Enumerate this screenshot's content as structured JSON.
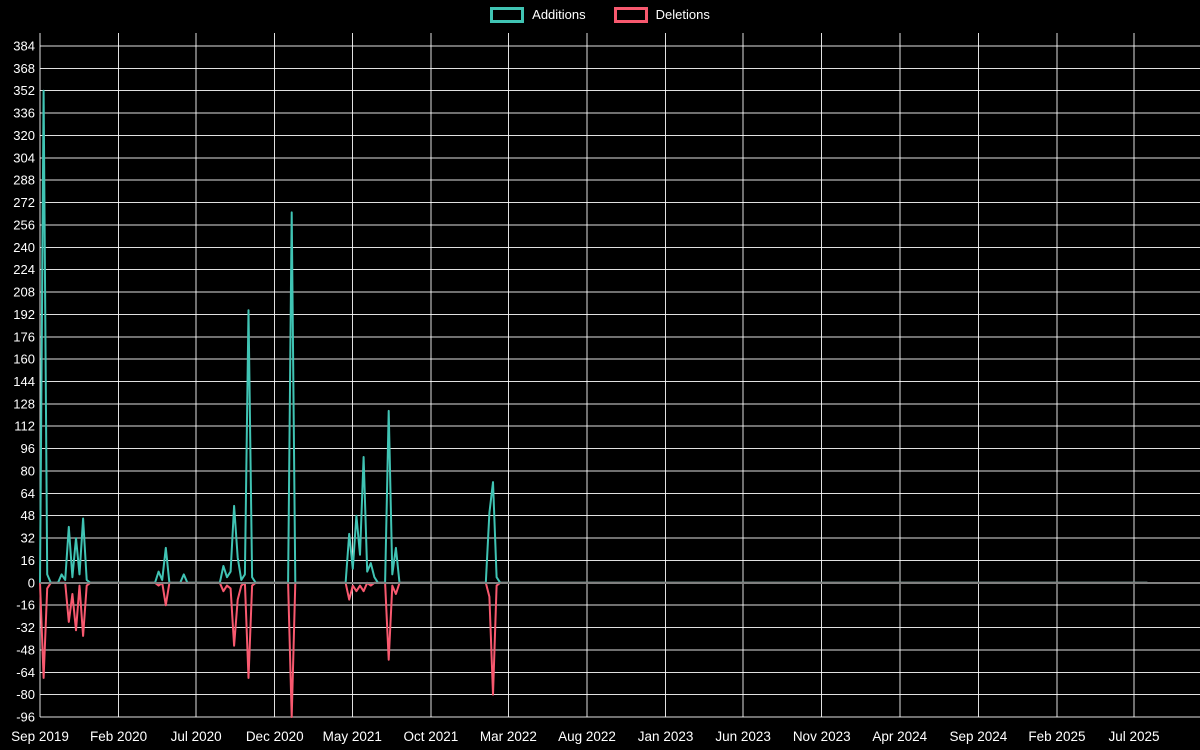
{
  "legend": {
    "additions_label": "Additions",
    "deletions_label": "Deletions"
  },
  "chart_data": {
    "type": "line",
    "title": "",
    "xlabel": "",
    "ylabel": "",
    "legend": [
      "Additions",
      "Deletions"
    ],
    "legend_position": "top-center",
    "grid": true,
    "background": "#000000",
    "colors": {
      "additions": "#40c4b4",
      "deletions": "#f8596f",
      "grid": "#ffffff",
      "zero_line": "#808080",
      "text": "#ffffff"
    },
    "ylim": [
      -96,
      384
    ],
    "y_tick_step": 16,
    "y_ticks": [
      384,
      368,
      352,
      336,
      320,
      304,
      288,
      272,
      256,
      240,
      224,
      208,
      192,
      176,
      160,
      144,
      128,
      112,
      96,
      80,
      64,
      48,
      32,
      16,
      0,
      -16,
      -32,
      -48,
      -64,
      -80,
      -96
    ],
    "x_ticks": [
      {
        "label": "Sep 2019",
        "date": "2019-09-01"
      },
      {
        "label": "Feb 2020",
        "date": "2020-02-01"
      },
      {
        "label": "Jul 2020",
        "date": "2020-07-01"
      },
      {
        "label": "Dec 2020",
        "date": "2020-12-01"
      },
      {
        "label": "May 2021",
        "date": "2021-05-01"
      },
      {
        "label": "Oct 2021",
        "date": "2021-10-01"
      },
      {
        "label": "Mar 2022",
        "date": "2022-03-01"
      },
      {
        "label": "Aug 2022",
        "date": "2022-08-01"
      },
      {
        "label": "Jan 2023",
        "date": "2023-01-01"
      },
      {
        "label": "Jun 2023",
        "date": "2023-06-01"
      },
      {
        "label": "Nov 2023",
        "date": "2023-11-01"
      },
      {
        "label": "Apr 2024",
        "date": "2024-04-01"
      },
      {
        "label": "Sep 2024",
        "date": "2024-09-01"
      },
      {
        "label": "Feb 2025",
        "date": "2025-02-01"
      },
      {
        "label": "Jul 2025",
        "date": "2025-07-01"
      }
    ],
    "series": [
      {
        "name": "Additions",
        "color_key": "additions",
        "value_index": 1
      },
      {
        "name": "Deletions",
        "color_key": "deletions",
        "value_index": 2
      }
    ],
    "points": [
      [
        "2019-09-01",
        0,
        0
      ],
      [
        "2019-09-08",
        352,
        -68
      ],
      [
        "2019-09-15",
        6,
        -4
      ],
      [
        "2019-09-22",
        0,
        0
      ],
      [
        "2019-10-06",
        0,
        0
      ],
      [
        "2019-10-13",
        6,
        0
      ],
      [
        "2019-10-20",
        2,
        0
      ],
      [
        "2019-10-27",
        40,
        -28
      ],
      [
        "2019-11-03",
        4,
        -8
      ],
      [
        "2019-11-10",
        32,
        -34
      ],
      [
        "2019-11-17",
        6,
        -2
      ],
      [
        "2019-11-24",
        46,
        -38
      ],
      [
        "2019-12-01",
        2,
        -2
      ],
      [
        "2019-12-08",
        0,
        0
      ],
      [
        "2020-04-12",
        0,
        0
      ],
      [
        "2020-04-19",
        8,
        -2
      ],
      [
        "2020-04-26",
        2,
        0
      ],
      [
        "2020-05-03",
        25,
        -16
      ],
      [
        "2020-05-10",
        0,
        0
      ],
      [
        "2020-05-31",
        0,
        0
      ],
      [
        "2020-06-07",
        6,
        0
      ],
      [
        "2020-06-14",
        0,
        0
      ],
      [
        "2020-08-16",
        0,
        0
      ],
      [
        "2020-08-23",
        12,
        -6
      ],
      [
        "2020-08-30",
        4,
        -2
      ],
      [
        "2020-09-06",
        8,
        -4
      ],
      [
        "2020-09-13",
        55,
        -45
      ],
      [
        "2020-09-20",
        18,
        -12
      ],
      [
        "2020-09-27",
        2,
        -2
      ],
      [
        "2020-10-04",
        6,
        0
      ],
      [
        "2020-10-11",
        195,
        -68
      ],
      [
        "2020-10-18",
        4,
        -2
      ],
      [
        "2020-10-25",
        0,
        0
      ],
      [
        "2020-12-27",
        0,
        0
      ],
      [
        "2021-01-03",
        265,
        -96
      ],
      [
        "2021-01-10",
        0,
        0
      ],
      [
        "2021-04-18",
        0,
        0
      ],
      [
        "2021-04-25",
        35,
        -12
      ],
      [
        "2021-05-02",
        10,
        -2
      ],
      [
        "2021-05-09",
        48,
        -6
      ],
      [
        "2021-05-16",
        20,
        -2
      ],
      [
        "2021-05-23",
        90,
        -6
      ],
      [
        "2021-05-30",
        8,
        0
      ],
      [
        "2021-06-06",
        14,
        -2
      ],
      [
        "2021-06-13",
        4,
        0
      ],
      [
        "2021-06-20",
        0,
        0
      ],
      [
        "2021-07-04",
        0,
        0
      ],
      [
        "2021-07-11",
        123,
        -55
      ],
      [
        "2021-07-18",
        6,
        -2
      ],
      [
        "2021-07-25",
        25,
        -8
      ],
      [
        "2021-08-01",
        0,
        0
      ],
      [
        "2022-01-16",
        0,
        0
      ],
      [
        "2022-01-23",
        50,
        -10
      ],
      [
        "2022-01-30",
        72,
        -80
      ],
      [
        "2022-02-06",
        4,
        -2
      ],
      [
        "2022-02-13",
        0,
        0
      ],
      [
        "2025-07-27",
        0,
        0
      ]
    ]
  }
}
